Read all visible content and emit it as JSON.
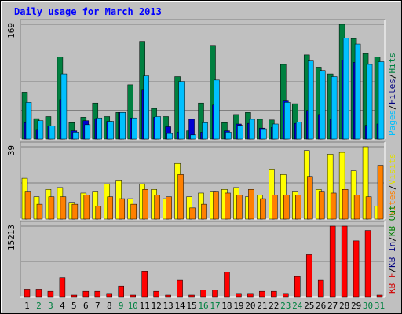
{
  "chart_data": {
    "type": "bar",
    "title": "Daily usage for March 2013",
    "categories": [
      "1",
      "2",
      "3",
      "4",
      "5",
      "6",
      "7",
      "8",
      "9",
      "10",
      "11",
      "12",
      "13",
      "14",
      "15",
      "16",
      "17",
      "18",
      "19",
      "20",
      "21",
      "22",
      "23",
      "24",
      "25",
      "26",
      "27",
      "28",
      "29",
      "30",
      "31"
    ],
    "weekend_days": [
      "2",
      "3",
      "9",
      "10",
      "16",
      "17",
      "23",
      "24",
      "30",
      "31"
    ],
    "colors": {
      "hits": "#008040",
      "files": "#00c0ff",
      "pages": "#0000d0",
      "visits": "#ffff00",
      "sites": "#ff8000",
      "kbin": "#000080",
      "kbout": "#008000",
      "kbf": "#d00000",
      "weekday_label": "#000000",
      "weekend_label": "#008040"
    },
    "panels": [
      {
        "name": "hits-files-pages",
        "ymax": 169,
        "ymax_label": "169",
        "side_labels": [
          {
            "text": "Pages",
            "color": "#00c0ff"
          },
          {
            "text": "/",
            "color": "#000000"
          },
          {
            "text": "Files",
            "color": "#000080"
          },
          {
            "text": "/",
            "color": "#000000"
          },
          {
            "text": "Hits",
            "color": "#008040"
          }
        ],
        "series": [
          {
            "name": "Hits",
            "color": "#008040",
            "values": [
              69,
              30,
              33,
              121,
              24,
              32,
              53,
              33,
              39,
              80,
              144,
              45,
              33,
              92,
              12,
              53,
              138,
              24,
              36,
              39,
              29,
              28,
              110,
              52,
              124,
              106,
              96,
              169,
              148,
              126,
              121
            ]
          },
          {
            "name": "Files",
            "color": "#00c0ff",
            "values": [
              54,
              27,
              19,
              96,
              10,
              21,
              31,
              26,
              39,
              31,
              93,
              33,
              8,
              85,
              6,
              24,
              87,
              10,
              20,
              29,
              15,
              22,
              54,
              25,
              115,
              101,
              92,
              149,
              140,
              110,
              114
            ]
          },
          {
            "name": "Pages",
            "color": "#0000d0",
            "values": [
              24,
              14,
              19,
              58,
              12,
              27,
              30,
              26,
              39,
              31,
              72,
              32,
              18,
              10,
              29,
              10,
              50,
              12,
              22,
              23,
              16,
              17,
              56,
              23,
              42,
              36,
              29,
              116,
              113,
              20,
              22
            ]
          }
        ]
      },
      {
        "name": "visits-sites",
        "ymax": 39,
        "ymax_label": "39",
        "side_labels": [
          {
            "text": "Sites",
            "color": "#ff8000"
          },
          {
            "text": "/",
            "color": "#000000"
          },
          {
            "text": "Visits",
            "color": "#e0e000"
          }
        ],
        "series": [
          {
            "name": "Visits",
            "color": "#ffff00",
            "values": [
              22,
              12,
              16,
              17,
              9,
              14,
              15,
              19,
              21,
              11,
              19,
              16,
              11,
              30,
              12,
              14,
              15,
              16,
              17,
              12,
              13,
              27,
              24,
              15,
              37,
              16,
              35,
              36,
              26,
              39,
              7
            ]
          },
          {
            "name": "Sites",
            "color": "#ff8000",
            "values": [
              15,
              8,
              12,
              12,
              8,
              13,
              7,
              12,
              11,
              8,
              16,
              13,
              12,
              24,
              6,
              8,
              15,
              14,
              13,
              16,
              11,
              13,
              13,
              13,
              23,
              15,
              14,
              16,
              13,
              12,
              29
            ]
          }
        ]
      },
      {
        "name": "kbytes",
        "ymax": 15213,
        "ymax_label": "15213",
        "side_labels": [
          {
            "text": "KB F",
            "color": "#d00000"
          },
          {
            "text": "/",
            "color": "#000000"
          },
          {
            "text": "KB In",
            "color": "#000080"
          },
          {
            "text": "/",
            "color": "#000000"
          },
          {
            "text": "KB Out",
            "color": "#008000"
          }
        ],
        "series": [
          {
            "name": "KB F",
            "color": "#ff0000",
            "values": [
              1617,
              1617,
              1153,
              4116,
              0,
              1153,
              1153,
              697,
              2334,
              0,
              5527,
              1153,
              0,
              3536,
              0,
              1404,
              1404,
              5296,
              697,
              697,
              1153,
              1153,
              697,
              4369,
              9056,
              3536,
              15213,
              15213,
              12023,
              14271,
              0
            ]
          }
        ]
      }
    ]
  }
}
